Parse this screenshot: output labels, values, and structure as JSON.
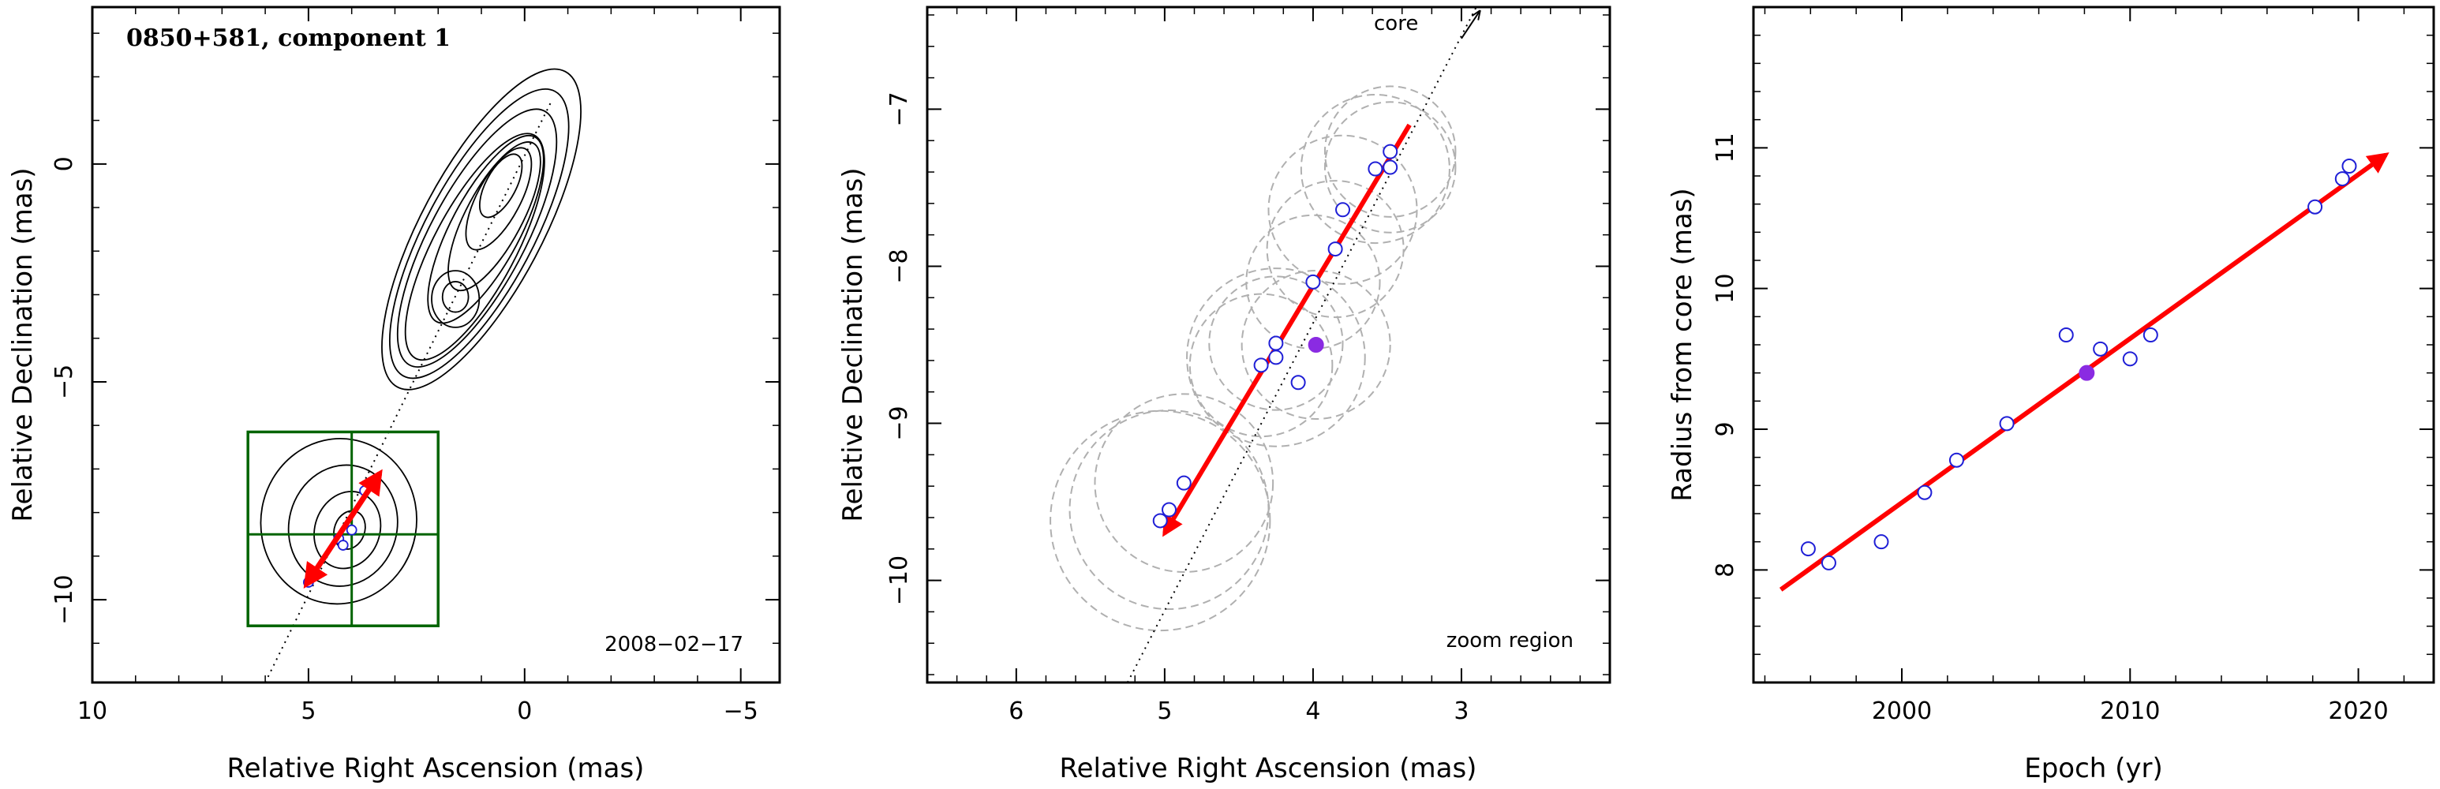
{
  "colors": {
    "fit_arrow": "#ff0000",
    "open_point": "#1f1fd6",
    "filled_point": "#8a2be2",
    "zoom_box": "#006400",
    "circle": "#b0b0b0",
    "contour": "#000000",
    "frame": "#000000"
  },
  "chart_data": [
    {
      "type": "contour",
      "title": "0850+581, component 1",
      "date": "2008−02−17",
      "xlabel": "Relative Right Ascension (mas)",
      "ylabel": "Relative Declination (mas)",
      "xlim": [
        10,
        -5.9
      ],
      "ylim": [
        -11.9,
        3.6
      ],
      "xticks": [
        {
          "v": 10,
          "label": "10"
        },
        {
          "v": 5,
          "label": "5"
        },
        {
          "v": 0,
          "label": "0"
        },
        {
          "v": -5,
          "label": "−5"
        }
      ],
      "yticks": [
        {
          "v": 0,
          "label": "0"
        },
        {
          "v": -5,
          "label": "−5"
        },
        {
          "v": -10,
          "label": "−10"
        }
      ],
      "core_line": [
        [
          6.0,
          -11.9
        ],
        [
          -0.6,
          1.4
        ]
      ],
      "zoom_box": {
        "x": [
          6.4,
          2.0
        ],
        "y": [
          -6.15,
          -10.6
        ],
        "center": [
          4.0,
          -8.5
        ]
      },
      "fit_arrow": {
        "from": [
          3.35,
          -7.1
        ],
        "to": [
          5.05,
          -9.65
        ]
      },
      "components": [
        {
          "x": 4.3,
          "y": -8.6
        },
        {
          "x": 4.0,
          "y": -8.4
        },
        {
          "x": 4.2,
          "y": -8.75
        },
        {
          "x": 5.0,
          "y": -9.6
        },
        {
          "x": 3.7,
          "y": -7.5
        }
      ],
      "contours": [
        {
          "cx": 1.0,
          "cy": -1.5,
          "rx": 1.4,
          "ry": 4.1,
          "rot": 28
        },
        {
          "cx": 1.05,
          "cy": -1.6,
          "rx": 1.25,
          "ry": 3.7,
          "rot": 28
        },
        {
          "cx": 1.1,
          "cy": -1.7,
          "rx": 1.1,
          "ry": 3.3,
          "rot": 28
        },
        {
          "cx": 1.15,
          "cy": -1.9,
          "rx": 0.95,
          "ry": 2.9,
          "rot": 28
        },
        {
          "cx": 0.9,
          "cy": -1.5,
          "rx": 0.8,
          "ry": 2.4,
          "rot": 28
        },
        {
          "cx": 0.7,
          "cy": -1.2,
          "rx": 0.65,
          "ry": 1.9,
          "rot": 28
        },
        {
          "cx": 0.6,
          "cy": -0.8,
          "rx": 0.5,
          "ry": 1.3,
          "rot": 28
        },
        {
          "cx": 0.55,
          "cy": -0.5,
          "rx": 0.35,
          "ry": 0.8,
          "rot": 28
        },
        {
          "cx": 1.6,
          "cy": -3.1,
          "rx": 0.55,
          "ry": 0.65,
          "rot": 0
        },
        {
          "cx": 1.6,
          "cy": -3.05,
          "rx": 0.3,
          "ry": 0.35,
          "rot": 0
        },
        {
          "cx": 4.3,
          "cy": -8.2,
          "rx": 1.8,
          "ry": 1.9,
          "rot": 10
        },
        {
          "cx": 4.2,
          "cy": -8.3,
          "rx": 1.25,
          "ry": 1.4,
          "rot": 15
        },
        {
          "cx": 4.1,
          "cy": -8.4,
          "rx": 0.75,
          "ry": 0.9,
          "rot": 20
        },
        {
          "cx": 4.05,
          "cy": -8.4,
          "rx": 0.35,
          "ry": 0.45,
          "rot": 20
        }
      ]
    },
    {
      "type": "scatter",
      "note": "zoom region",
      "core_label": "core",
      "xlabel": "Relative Right Ascension (mas)",
      "ylabel": "Relative Declination (mas)",
      "xlim": [
        6.6,
        2.0
      ],
      "ylim": [
        -10.65,
        -6.35
      ],
      "xticks": [
        {
          "v": 6,
          "label": "6"
        },
        {
          "v": 5,
          "label": "5"
        },
        {
          "v": 4,
          "label": "4"
        },
        {
          "v": 3,
          "label": "3"
        }
      ],
      "yticks": [
        {
          "v": -7,
          "label": "−7"
        },
        {
          "v": -8,
          "label": "−8"
        },
        {
          "v": -9,
          "label": "−9"
        },
        {
          "v": -10,
          "label": "−10"
        }
      ],
      "core_line": [
        [
          5.25,
          -10.65
        ],
        [
          2.9,
          -6.35
        ]
      ],
      "fit_arrow": {
        "from": [
          3.35,
          -7.1
        ],
        "to": [
          5.0,
          -9.7
        ]
      },
      "points_open": [
        {
          "x": 3.48,
          "y": -7.27
        },
        {
          "x": 3.48,
          "y": -7.37
        },
        {
          "x": 3.58,
          "y": -7.38
        },
        {
          "x": 3.8,
          "y": -7.64
        },
        {
          "x": 3.85,
          "y": -7.89
        },
        {
          "x": 4.0,
          "y": -8.1
        },
        {
          "x": 4.25,
          "y": -8.49
        },
        {
          "x": 4.25,
          "y": -8.58
        },
        {
          "x": 4.35,
          "y": -8.63
        },
        {
          "x": 4.1,
          "y": -8.74
        },
        {
          "x": 4.87,
          "y": -9.38
        },
        {
          "x": 4.97,
          "y": -9.55
        },
        {
          "x": 5.03,
          "y": -9.62
        }
      ],
      "points_filled": [
        {
          "x": 3.98,
          "y": -8.5
        }
      ],
      "circles": [
        {
          "x": 3.48,
          "y": -7.27,
          "r": 0.44
        },
        {
          "x": 3.48,
          "y": -7.37,
          "r": 0.44
        },
        {
          "x": 3.58,
          "y": -7.38,
          "r": 0.5
        },
        {
          "x": 3.8,
          "y": -7.64,
          "r": 0.5
        },
        {
          "x": 3.85,
          "y": -7.89,
          "r": 0.46
        },
        {
          "x": 4.0,
          "y": -8.1,
          "r": 0.45
        },
        {
          "x": 4.25,
          "y": -8.49,
          "r": 0.45
        },
        {
          "x": 4.25,
          "y": -8.58,
          "r": 0.6
        },
        {
          "x": 4.35,
          "y": -8.63,
          "r": 0.48
        },
        {
          "x": 3.98,
          "y": -8.5,
          "r": 0.5
        },
        {
          "x": 4.87,
          "y": -9.38,
          "r": 0.6
        },
        {
          "x": 4.97,
          "y": -9.55,
          "r": 0.67
        },
        {
          "x": 5.03,
          "y": -9.62,
          "r": 0.74
        }
      ]
    },
    {
      "type": "scatter",
      "xlabel": "Epoch (yr)",
      "ylabel": "Radius from core (mas)",
      "xlim": [
        1993.5,
        2023.3
      ],
      "ylim": [
        7.2,
        12.0
      ],
      "xticks": [
        {
          "v": 2000,
          "label": "2000"
        },
        {
          "v": 2010,
          "label": "2010"
        },
        {
          "v": 2020,
          "label": "2020"
        }
      ],
      "yticks": [
        {
          "v": 8,
          "label": "8"
        },
        {
          "v": 9,
          "label": "9"
        },
        {
          "v": 10,
          "label": "10"
        },
        {
          "v": 11,
          "label": "11"
        }
      ],
      "points_open": [
        {
          "x": 1995.9,
          "y": 8.15
        },
        {
          "x": 1996.8,
          "y": 8.05
        },
        {
          "x": 1999.1,
          "y": 8.2
        },
        {
          "x": 2001.0,
          "y": 8.55
        },
        {
          "x": 2002.4,
          "y": 8.78
        },
        {
          "x": 2004.6,
          "y": 9.04
        },
        {
          "x": 2007.2,
          "y": 9.67
        },
        {
          "x": 2008.7,
          "y": 9.57
        },
        {
          "x": 2010.0,
          "y": 9.5
        },
        {
          "x": 2010.9,
          "y": 9.67
        },
        {
          "x": 2018.1,
          "y": 10.58
        },
        {
          "x": 2019.3,
          "y": 10.78
        },
        {
          "x": 2019.6,
          "y": 10.87
        }
      ],
      "points_filled": [
        {
          "x": 2008.1,
          "y": 9.4
        }
      ],
      "fit_arrow": {
        "from": [
          1994.7,
          7.86
        ],
        "to": [
          2021.2,
          10.95
        ]
      }
    }
  ]
}
